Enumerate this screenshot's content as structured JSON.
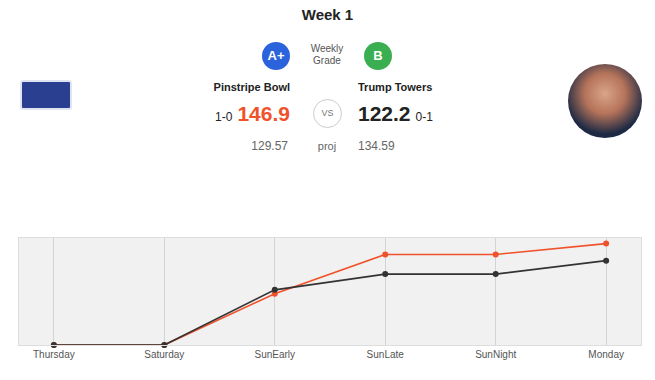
{
  "scoreboard": {
    "title": "Week 1",
    "grade_label": "Weekly Grade",
    "proj_label": "proj",
    "vs_label": "VS",
    "teams": [
      {
        "name": "Pinstripe Bowl",
        "record": "1-0",
        "score": 146.9,
        "projected": 129.57,
        "grade": "A+"
      },
      {
        "name": "Trump Towers",
        "record": "0-1",
        "score": 122.2,
        "projected": 134.59,
        "grade": "B"
      }
    ]
  },
  "chart_data": {
    "type": "line",
    "categories": [
      "Thursday",
      "Saturday",
      "SunEarly",
      "SunLate",
      "SunNight",
      "Monday"
    ],
    "series": [
      {
        "name": "Pinstripe Bowl",
        "color": "#f0522b",
        "values": [
          0,
          0,
          74.2,
          131.2,
          131.2,
          146.9
        ]
      },
      {
        "name": "Trump Towers",
        "color": "#333333",
        "values": [
          0,
          0,
          79.9,
          102.7,
          102.7,
          122.2
        ]
      }
    ],
    "ylim": [
      0,
      155
    ],
    "yticks": [],
    "tick_labels": "x",
    "grid": true,
    "legend": "top left",
    "marker": "circle"
  }
}
